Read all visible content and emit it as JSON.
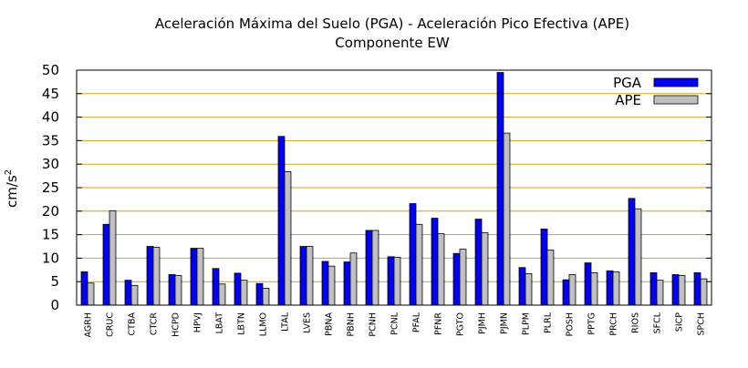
{
  "colors": {
    "pga": "#0000ee",
    "ape": "#c0c0c0",
    "grid": "#d4a017",
    "edge": "#000000"
  },
  "chart_data": {
    "type": "bar",
    "title": "Aceleración Máxima del Suelo (PGA) -  Aceleración Pico Efectiva (APE)",
    "subtitle": "Componente EW",
    "ylabel_base": "cm/s",
    "ylabel_sup": "2",
    "ylim": [
      0,
      50
    ],
    "yticks": [
      0,
      5,
      10,
      15,
      20,
      25,
      30,
      35,
      40,
      45,
      50
    ],
    "grid": "horizontal",
    "legend_position": "top-right",
    "categories": [
      "AGRH",
      "CRUC",
      "CTBA",
      "CTCR",
      "HCPD",
      "HPVJ",
      "LBAT",
      "LBTN",
      "LLMO",
      "LTAL",
      "LVES",
      "PBNA",
      "PBNH",
      "PCNH",
      "PCNL",
      "PFAL",
      "PFNR",
      "PGTO",
      "PJMH",
      "PJMN",
      "PLPM",
      "PLRL",
      "POSH",
      "PPTG",
      "PRCH",
      "RIOS",
      "SFCL",
      "SICP",
      "SPCH"
    ],
    "series": [
      {
        "name": "PGA",
        "values": [
          7.1,
          17.2,
          5.3,
          12.5,
          6.5,
          12.1,
          7.8,
          6.8,
          4.6,
          35.9,
          12.5,
          9.3,
          9.2,
          15.9,
          10.3,
          21.6,
          18.5,
          11.0,
          18.3,
          49.5,
          8.0,
          16.2,
          5.4,
          9.0,
          7.3,
          22.7,
          6.9,
          6.5,
          6.9
        ]
      },
      {
        "name": "APE",
        "values": [
          4.7,
          20.1,
          4.2,
          12.3,
          6.3,
          12.1,
          4.5,
          5.3,
          3.6,
          28.4,
          12.5,
          8.3,
          11.1,
          15.9,
          10.2,
          17.2,
          15.2,
          11.9,
          15.4,
          36.6,
          6.7,
          11.7,
          6.5,
          6.9,
          7.1,
          20.5,
          5.3,
          6.3,
          5.6
        ]
      }
    ]
  }
}
